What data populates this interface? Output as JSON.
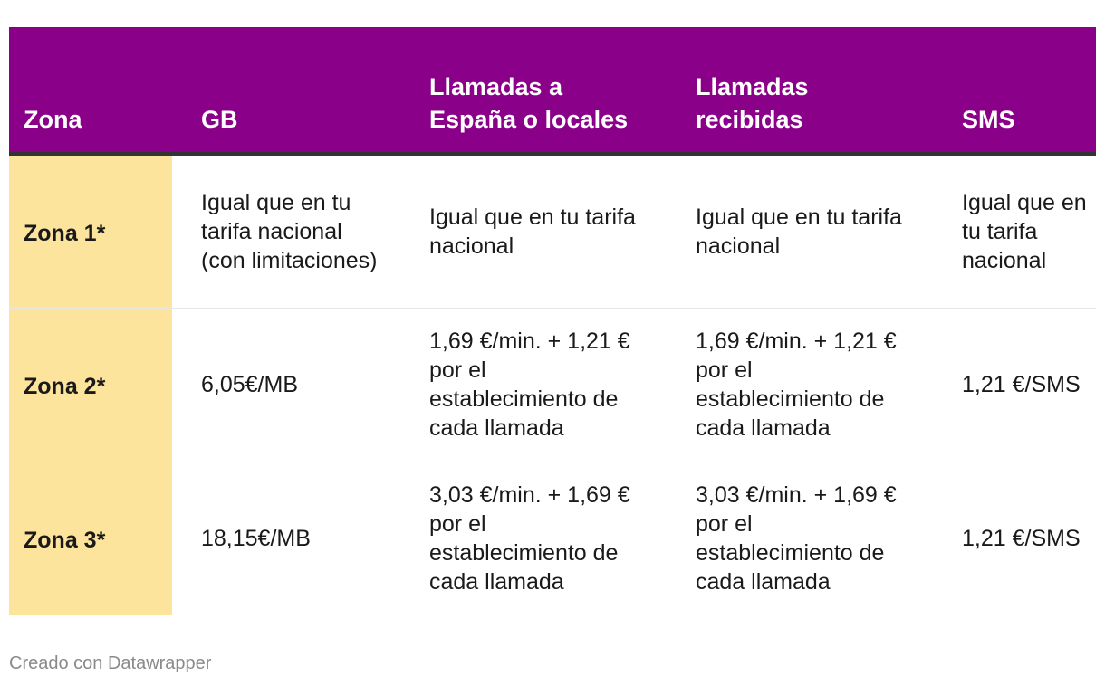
{
  "table": {
    "headers": [
      "Zona",
      "GB",
      "Llamadas a España o locales",
      "Llamadas recibidas",
      "SMS"
    ],
    "rows": [
      {
        "zona": "Zona 1*",
        "gb": "Igual que en tu tarifa nacional (con limitaciones)",
        "llamadas_espana": "Igual que en tu tarifa nacional",
        "llamadas_recibidas": "Igual que en tu tarifa nacional",
        "sms": "Igual que en tu tarifa nacional"
      },
      {
        "zona": "Zona 2*",
        "gb": "6,05€/MB",
        "llamadas_espana": "1,69 €/min. + 1,21 € por el establecimiento de cada llamada",
        "llamadas_recibidas": "1,69 €/min. + 1,21 € por el establecimiento de cada llamada",
        "sms": "1,21 €/SMS"
      },
      {
        "zona": "Zona 3*",
        "gb": "18,15€/MB",
        "llamadas_espana": "3,03 €/min. + 1,69 € por el establecimiento de cada llamada",
        "llamadas_recibidas": "3,03 €/min. + 1,69 € por el establecimiento de cada llamada",
        "sms": "1,21 €/SMS"
      }
    ]
  },
  "footer": {
    "credit": "Creado con Datawrapper"
  },
  "colors": {
    "header_bg": "#8a0088",
    "zone_bg": "#fde49c",
    "header_rule": "#333333"
  }
}
